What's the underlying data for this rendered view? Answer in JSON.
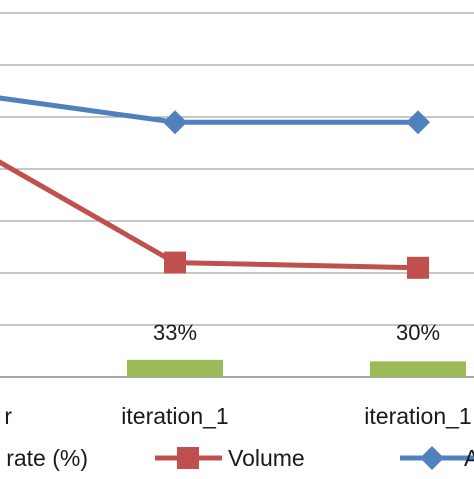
{
  "chart_data": {
    "type": "line",
    "categories": [
      "r",
      "iteration_1",
      "iteration_1"
    ],
    "grid": true,
    "ylim": [
      0,
      7
    ],
    "series": [
      {
        "name": "Volume",
        "type": "line",
        "marker": "square",
        "color": "#c0504d",
        "values": [
          4.9,
          2.2,
          2.1
        ]
      },
      {
        "name": "A",
        "type": "line",
        "marker": "diamond",
        "color": "#4f81bd",
        "values": [
          5.55,
          4.9,
          4.9
        ]
      },
      {
        "name": "rate (%)",
        "type": "bar",
        "color": "#9bbb59",
        "values": [
          null,
          0.33,
          0.3
        ],
        "labels": [
          "",
          "33%",
          "30%"
        ]
      }
    ],
    "legend": {
      "position": "bottom",
      "entries": [
        "rate (%)",
        "Volume",
        "A"
      ]
    }
  }
}
